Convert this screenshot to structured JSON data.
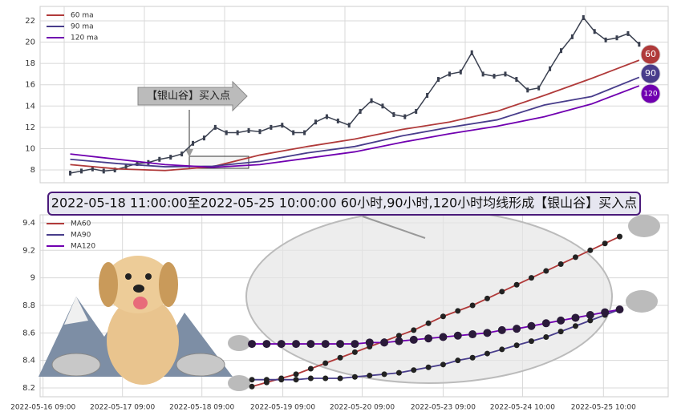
{
  "chart_data": [
    {
      "type": "line",
      "legend": "upper left",
      "grid": true,
      "ylim": [
        6.8,
        23.35
      ],
      "yticks": [
        8,
        10,
        12,
        14,
        16,
        18,
        20,
        22
      ],
      "xlim": [
        -2.7,
        53.6
      ],
      "price": [
        7.7,
        7.9,
        8.1,
        7.9,
        8.0,
        8.3,
        8.6,
        8.7,
        9.0,
        9.2,
        9.5,
        10.5,
        11.0,
        12.0,
        11.5,
        11.5,
        11.7,
        11.6,
        12.0,
        12.2,
        11.5,
        11.5,
        12.5,
        13.0,
        12.6,
        12.2,
        13.5,
        14.5,
        14.0,
        13.2,
        13.0,
        13.5,
        15.0,
        16.5,
        17.0,
        17.2,
        19.0,
        17.0,
        16.8,
        17.0,
        16.5,
        15.5,
        15.7,
        17.5,
        19.2,
        20.5,
        22.3,
        21.0,
        20.2,
        20.4,
        20.8,
        19.8
      ],
      "price_color": "#3a4050",
      "x": [
        0,
        4.25,
        8.5,
        12.75,
        17,
        21.25,
        25.5,
        29.75,
        34,
        38.25,
        42.5,
        46.75,
        51
      ],
      "series": [
        {
          "name": "60 ma",
          "color": "#b03a3a",
          "values": [
            8.5,
            8.1,
            7.95,
            8.3,
            9.4,
            10.2,
            10.9,
            11.8,
            12.5,
            13.5,
            15.0,
            16.6,
            18.3
          ]
        },
        {
          "name": "90 ma",
          "color": "#483d8b",
          "values": [
            9.0,
            8.6,
            8.3,
            8.35,
            8.8,
            9.6,
            10.2,
            11.2,
            12.0,
            12.7,
            14.1,
            14.9,
            16.7
          ]
        },
        {
          "name": "120 ma",
          "color": "#7000b0",
          "values": [
            9.5,
            9.0,
            8.5,
            8.25,
            8.5,
            9.1,
            9.7,
            10.6,
            11.4,
            12.1,
            13.0,
            14.2,
            15.9
          ]
        }
      ],
      "end_labels": [
        "60",
        "90",
        "120"
      ],
      "annotation": "【银山谷】买入点"
    },
    {
      "type": "line",
      "legend": "upper left",
      "grid": true,
      "title": "2022-05-18 11:00:00至2022-05-25 10:00:00 60小时,90小时,120小时均线形成【银山谷】买入点",
      "ylim": [
        8.136,
        9.458
      ],
      "yticks": [
        8.2,
        8.4,
        8.6,
        8.8,
        9.0,
        9.2,
        9.4
      ],
      "xlim": [
        -14.4,
        28.3
      ],
      "xticks": [
        {
          "value": -14.2,
          "label": "2022-05-16 09:00"
        },
        {
          "value": -8.8,
          "label": "2022-05-17 09:00"
        },
        {
          "value": -3.4,
          "label": "2022-05-18 09:00"
        },
        {
          "value": 2.1,
          "label": "2022-05-19 09:00"
        },
        {
          "value": 7.5,
          "label": "2022-05-20 09:00"
        },
        {
          "value": 13.0,
          "label": "2022-05-23 09:00"
        },
        {
          "value": 18.4,
          "label": "2022-05-24 10:00"
        },
        {
          "value": 23.9,
          "label": "2022-05-25 10:00"
        }
      ],
      "x": [
        0,
        1,
        2,
        3,
        4,
        5,
        6,
        7,
        8,
        9,
        10,
        11,
        12,
        13,
        14,
        15,
        16,
        17,
        18,
        19,
        20,
        21,
        22,
        23,
        24,
        25
      ],
      "series": [
        {
          "name": "MA60",
          "color": "#b03a3a",
          "values": [
            8.21,
            8.24,
            8.27,
            8.3,
            8.34,
            8.38,
            8.42,
            8.46,
            8.5,
            8.54,
            8.58,
            8.62,
            8.67,
            8.72,
            8.76,
            8.8,
            8.85,
            8.9,
            8.95,
            9.0,
            9.05,
            9.1,
            9.15,
            9.2,
            9.25,
            9.3
          ]
        },
        {
          "name": "MA90",
          "color": "#483d8b",
          "values": [
            8.26,
            8.26,
            8.26,
            8.26,
            8.27,
            8.27,
            8.27,
            8.28,
            8.29,
            8.3,
            8.31,
            8.33,
            8.35,
            8.37,
            8.4,
            8.42,
            8.45,
            8.48,
            8.51,
            8.54,
            8.57,
            8.61,
            8.65,
            8.69,
            8.73,
            8.77
          ]
        },
        {
          "name": "MA120",
          "color": "#7000b0",
          "values": [
            8.52,
            8.52,
            8.52,
            8.52,
            8.52,
            8.52,
            8.52,
            8.52,
            8.53,
            8.53,
            8.54,
            8.55,
            8.56,
            8.57,
            8.58,
            8.59,
            8.6,
            8.62,
            8.63,
            8.65,
            8.67,
            8.69,
            8.71,
            8.73,
            8.75,
            8.77
          ]
        }
      ]
    }
  ]
}
